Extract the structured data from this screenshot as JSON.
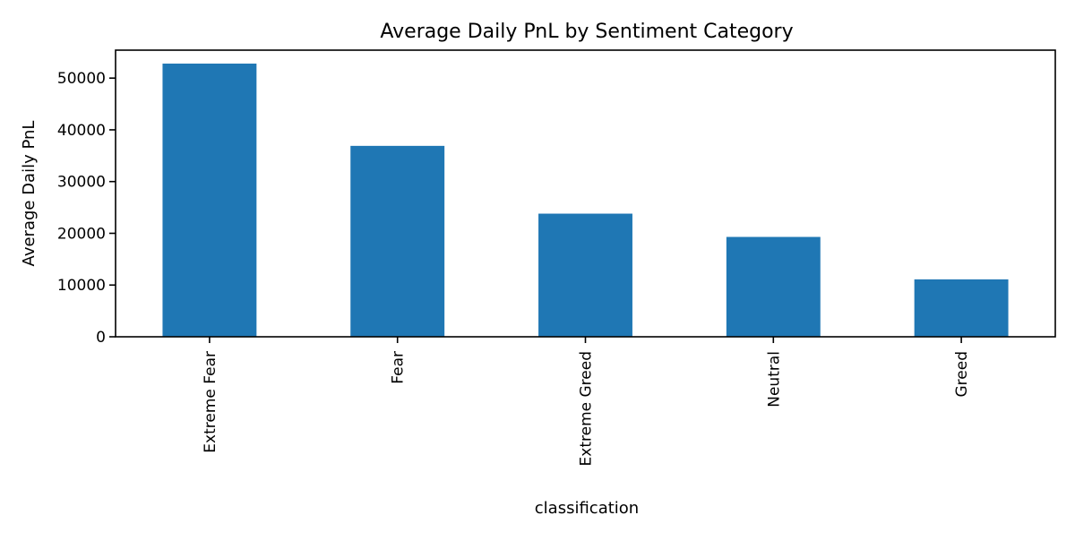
{
  "chart_data": {
    "type": "bar",
    "title": "Average Daily PnL by Sentiment Category",
    "xlabel": "classification",
    "ylabel": "Average Daily PnL",
    "categories": [
      "Extreme Fear",
      "Fear",
      "Extreme Greed",
      "Neutral",
      "Greed"
    ],
    "values": [
      52800,
      36900,
      23800,
      19300,
      11100
    ],
    "ylim": [
      0,
      55400
    ],
    "yticks": [
      0,
      10000,
      20000,
      30000,
      40000,
      50000
    ],
    "ytick_labels": [
      "0",
      "10000",
      "20000",
      "30000",
      "40000",
      "50000"
    ],
    "bar_color": "#1f77b4",
    "grid": false,
    "legend": false
  }
}
